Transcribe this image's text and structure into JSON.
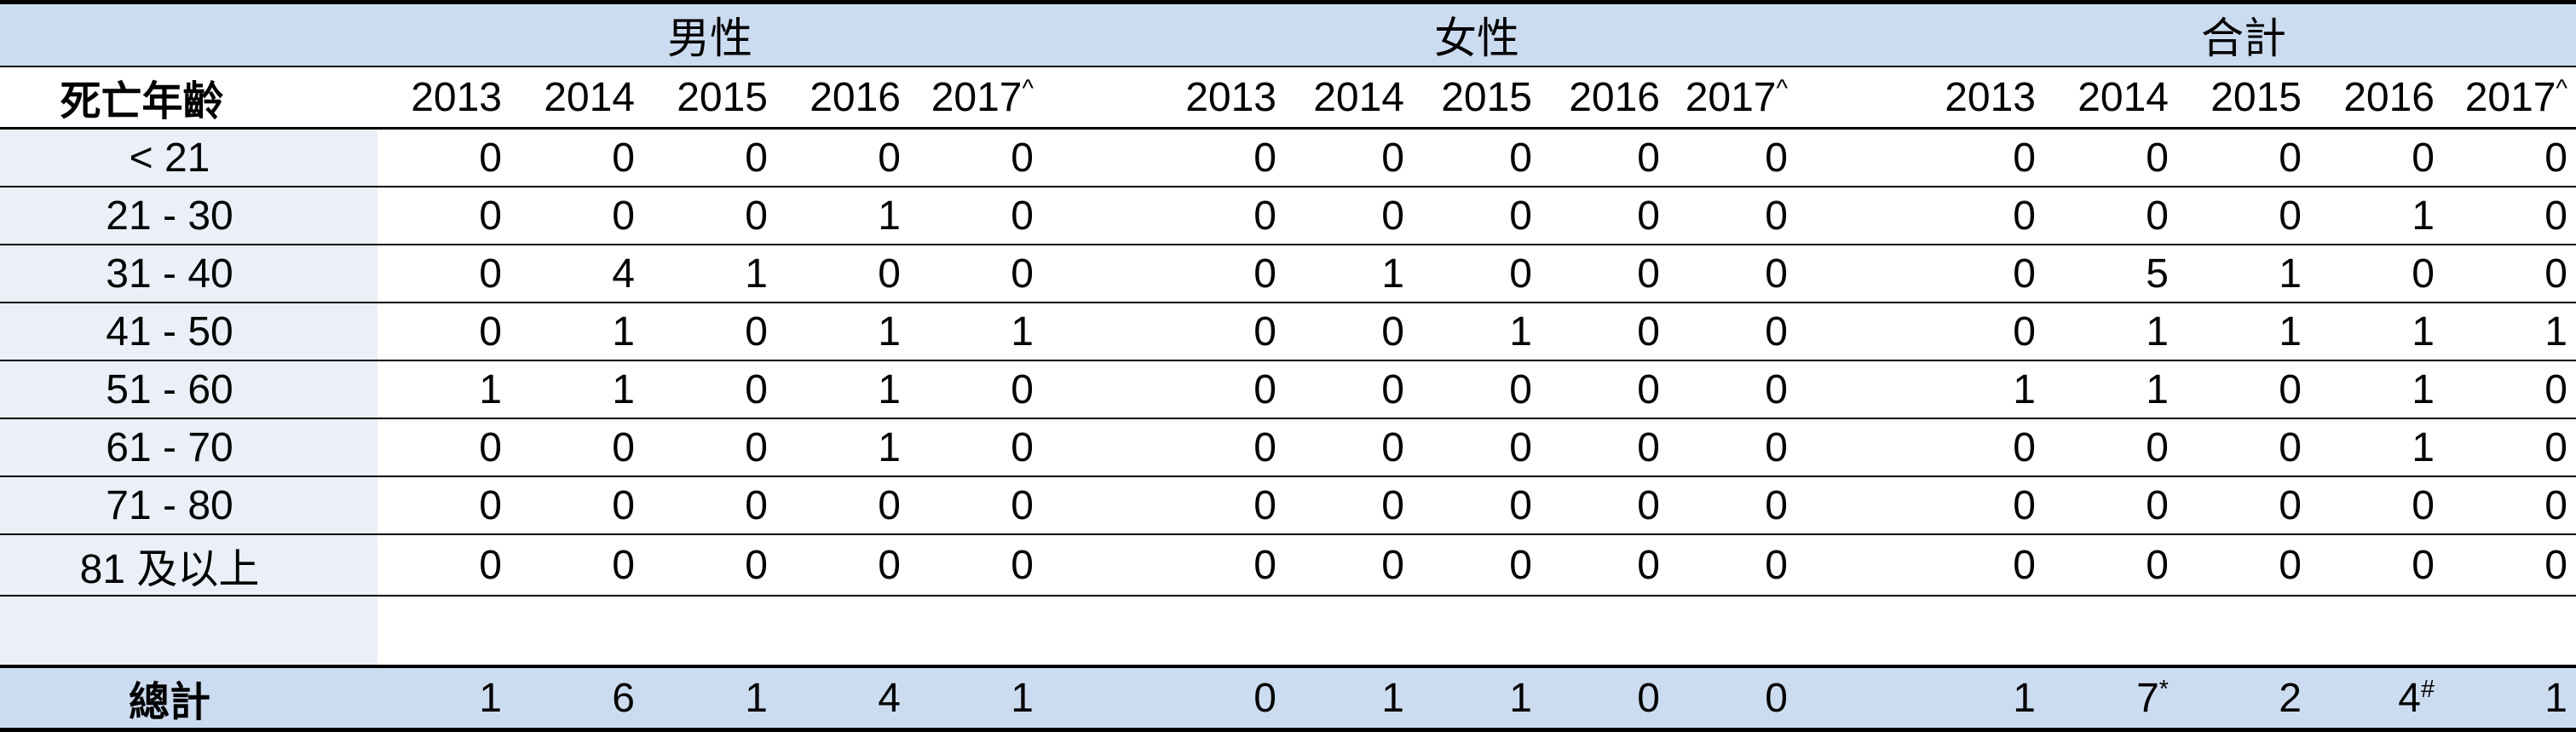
{
  "table": {
    "corner_header": "死亡年齡",
    "groups": [
      {
        "id": "male",
        "label": "男性"
      },
      {
        "id": "female",
        "label": "女性"
      },
      {
        "id": "total",
        "label": "合計"
      }
    ],
    "years": [
      {
        "value": "2013"
      },
      {
        "value": "2014"
      },
      {
        "value": "2015"
      },
      {
        "value": "2016"
      },
      {
        "value": "2017",
        "mark": "^"
      }
    ],
    "rows": [
      {
        "label": "< 21",
        "male": [
          "0",
          "0",
          "0",
          "0",
          "0"
        ],
        "female": [
          "0",
          "0",
          "0",
          "0",
          "0"
        ],
        "total": [
          "0",
          "0",
          "0",
          "0",
          "0"
        ]
      },
      {
        "label": "21 - 30",
        "male": [
          "0",
          "0",
          "0",
          "1",
          "0"
        ],
        "female": [
          "0",
          "0",
          "0",
          "0",
          "0"
        ],
        "total": [
          "0",
          "0",
          "0",
          "1",
          "0"
        ]
      },
      {
        "label": "31 - 40",
        "male": [
          "0",
          "4",
          "1",
          "0",
          "0"
        ],
        "female": [
          "0",
          "1",
          "0",
          "0",
          "0"
        ],
        "total": [
          "0",
          "5",
          "1",
          "0",
          "0"
        ]
      },
      {
        "label": "41 - 50",
        "male": [
          "0",
          "1",
          "0",
          "1",
          "1"
        ],
        "female": [
          "0",
          "0",
          "1",
          "0",
          "0"
        ],
        "total": [
          "0",
          "1",
          "1",
          "1",
          "1"
        ]
      },
      {
        "label": "51 - 60",
        "male": [
          "1",
          "1",
          "0",
          "1",
          "0"
        ],
        "female": [
          "0",
          "0",
          "0",
          "0",
          "0"
        ],
        "total": [
          "1",
          "1",
          "0",
          "1",
          "0"
        ]
      },
      {
        "label": "61 - 70",
        "male": [
          "0",
          "0",
          "0",
          "1",
          "0"
        ],
        "female": [
          "0",
          "0",
          "0",
          "0",
          "0"
        ],
        "total": [
          "0",
          "0",
          "0",
          "1",
          "0"
        ]
      },
      {
        "label": "71 - 80",
        "male": [
          "0",
          "0",
          "0",
          "0",
          "0"
        ],
        "female": [
          "0",
          "0",
          "0",
          "0",
          "0"
        ],
        "total": [
          "0",
          "0",
          "0",
          "0",
          "0"
        ]
      },
      {
        "label": "81 及以上",
        "male": [
          "0",
          "0",
          "0",
          "0",
          "0"
        ],
        "female": [
          "0",
          "0",
          "0",
          "0",
          "0"
        ],
        "total": [
          "0",
          "0",
          "0",
          "0",
          "0"
        ]
      }
    ],
    "total_row": {
      "label": "總計",
      "male": [
        {
          "value": "1"
        },
        {
          "value": "6"
        },
        {
          "value": "1"
        },
        {
          "value": "4"
        },
        {
          "value": "1"
        }
      ],
      "female": [
        {
          "value": "0"
        },
        {
          "value": "1"
        },
        {
          "value": "1"
        },
        {
          "value": "0"
        },
        {
          "value": "0"
        }
      ],
      "total": [
        {
          "value": "1"
        },
        {
          "value": "7",
          "mark": "*"
        },
        {
          "value": "2"
        },
        {
          "value": "4",
          "mark": "#"
        },
        {
          "value": "1"
        }
      ]
    },
    "colors": {
      "header_band_bg": "#ccdcf0",
      "label_column_bg": "#eaeff8",
      "total_row_bg": "#ccdcf0",
      "border": "#000000"
    }
  }
}
